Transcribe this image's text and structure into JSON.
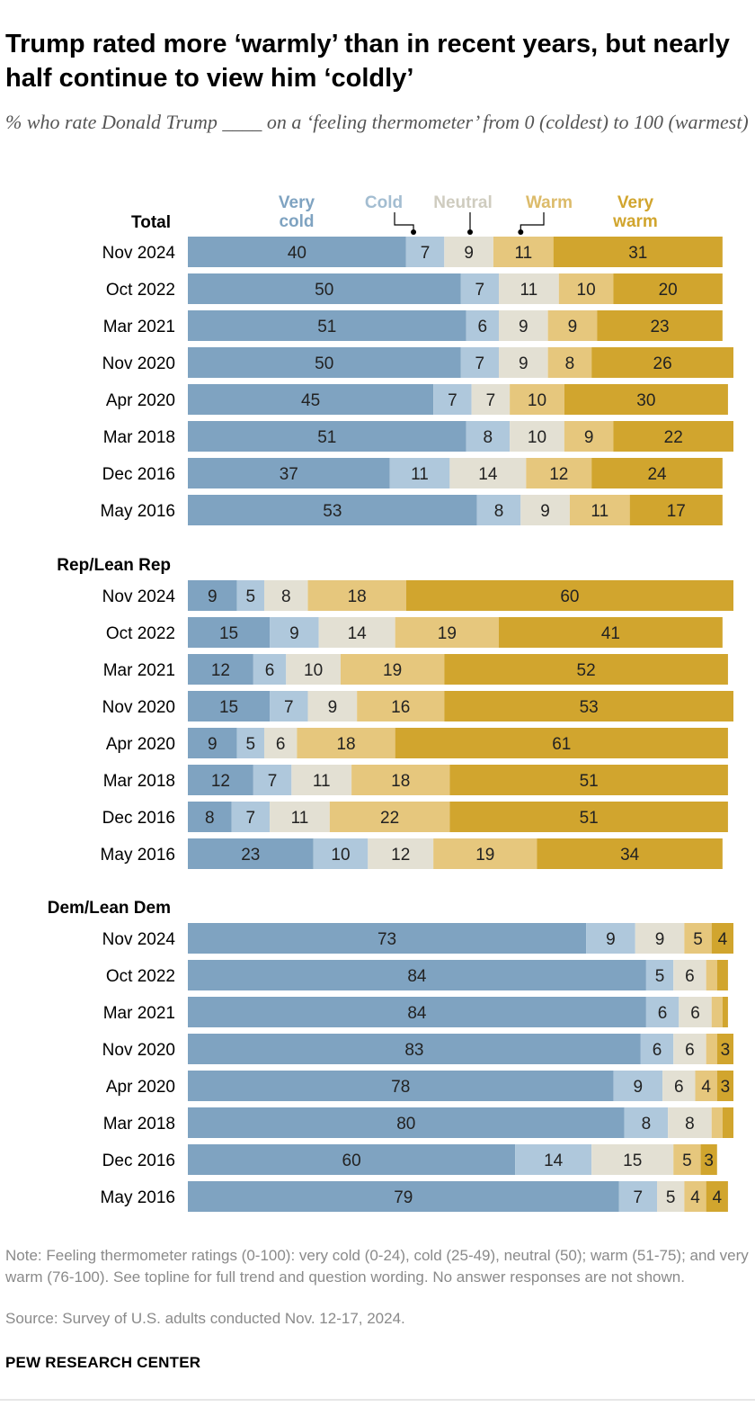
{
  "title": "Trump rated more ‘warmly’ than in recent years, but nearly half continue to view him ‘coldly’",
  "subtitle": "% who rate Donald Trump ____ on a ‘feeling thermometer’ from 0 (coldest) to 100 (warmest)",
  "note": "Note: Feeling thermometer ratings (0-100): very cold (0-24), cold (25-49), neutral (50); warm (51-75); and very warm (76-100). See topline for full trend and question wording. No answer responses are not shown.",
  "source": "Source: Survey of U.S. adults conducted Nov. 12-17, 2024.",
  "brand": "PEW RESEARCH CENTER",
  "chart_data": {
    "type": "bar",
    "orientation": "horizontal",
    "stacked": true,
    "xlim": [
      0,
      100
    ],
    "legend": {
      "placement": "top",
      "entries": [
        {
          "key": "very_cold",
          "lines": [
            "Very",
            "cold"
          ]
        },
        {
          "key": "cold",
          "lines": [
            "Cold"
          ]
        },
        {
          "key": "neutral",
          "lines": [
            "Neutral"
          ]
        },
        {
          "key": "warm",
          "lines": [
            "Warm"
          ]
        },
        {
          "key": "very_warm",
          "lines": [
            "Very",
            "warm"
          ]
        }
      ]
    },
    "colors": {
      "very_cold": "#7fa3c1",
      "cold": "#afc8dc",
      "neutral": "#e3e0d3",
      "warm": "#e6c77d",
      "very_warm": "#d1a52e",
      "legend_very_cold": "#7fa3c1",
      "legend_cold": "#a3bdd1",
      "legend_neutral": "#cfccbf",
      "legend_warm": "#dcbb6a",
      "legend_very_warm": "#d1a52e"
    },
    "groups": [
      {
        "name": "Total",
        "rows": [
          {
            "label": "Nov 2024",
            "values": [
              40,
              7,
              9,
              11,
              31
            ]
          },
          {
            "label": "Oct 2022",
            "values": [
              50,
              7,
              11,
              10,
              20
            ]
          },
          {
            "label": "Mar 2021",
            "values": [
              51,
              6,
              9,
              9,
              23
            ]
          },
          {
            "label": "Nov 2020",
            "values": [
              50,
              7,
              9,
              8,
              26
            ]
          },
          {
            "label": "Apr 2020",
            "values": [
              45,
              7,
              7,
              10,
              30
            ]
          },
          {
            "label": "Mar 2018",
            "values": [
              51,
              8,
              10,
              9,
              22
            ]
          },
          {
            "label": "Dec 2016",
            "values": [
              37,
              11,
              14,
              12,
              24
            ]
          },
          {
            "label": "May 2016",
            "values": [
              53,
              8,
              9,
              11,
              17
            ]
          }
        ]
      },
      {
        "name": "Rep/Lean Rep",
        "rows": [
          {
            "label": "Nov 2024",
            "values": [
              9,
              5,
              8,
              18,
              60
            ]
          },
          {
            "label": "Oct 2022",
            "values": [
              15,
              9,
              14,
              19,
              41
            ]
          },
          {
            "label": "Mar 2021",
            "values": [
              12,
              6,
              10,
              19,
              52
            ]
          },
          {
            "label": "Nov 2020",
            "values": [
              15,
              7,
              9,
              16,
              53
            ]
          },
          {
            "label": "Apr 2020",
            "values": [
              9,
              5,
              6,
              18,
              61
            ]
          },
          {
            "label": "Mar 2018",
            "values": [
              12,
              7,
              11,
              18,
              51
            ]
          },
          {
            "label": "Dec 2016",
            "values": [
              8,
              7,
              11,
              22,
              51
            ]
          },
          {
            "label": "May 2016",
            "values": [
              23,
              10,
              12,
              19,
              34
            ]
          }
        ]
      },
      {
        "name": "Dem/Lean Dem",
        "rows": [
          {
            "label": "Nov 2024",
            "values": [
              73,
              9,
              9,
              5,
              4
            ]
          },
          {
            "label": "Oct 2022",
            "values": [
              84,
              5,
              6,
              2,
              2
            ],
            "labels": [
              "84",
              "5",
              "6",
              "",
              ""
            ]
          },
          {
            "label": "Mar 2021",
            "values": [
              84,
              6,
              6,
              2,
              1
            ],
            "labels": [
              "84",
              "6",
              "6",
              "",
              ""
            ]
          },
          {
            "label": "Nov 2020",
            "values": [
              83,
              6,
              6,
              2,
              3
            ],
            "labels": [
              "83",
              "6",
              "6",
              "",
              "3"
            ]
          },
          {
            "label": "Apr 2020",
            "values": [
              78,
              9,
              6,
              4,
              3
            ]
          },
          {
            "label": "Mar 2018",
            "values": [
              80,
              8,
              8,
              2,
              2
            ],
            "labels": [
              "80",
              "8",
              "8",
              "",
              ""
            ]
          },
          {
            "label": "Dec 2016",
            "values": [
              60,
              14,
              15,
              5,
              3
            ]
          },
          {
            "label": "May 2016",
            "values": [
              79,
              7,
              5,
              4,
              4
            ]
          }
        ]
      }
    ]
  }
}
